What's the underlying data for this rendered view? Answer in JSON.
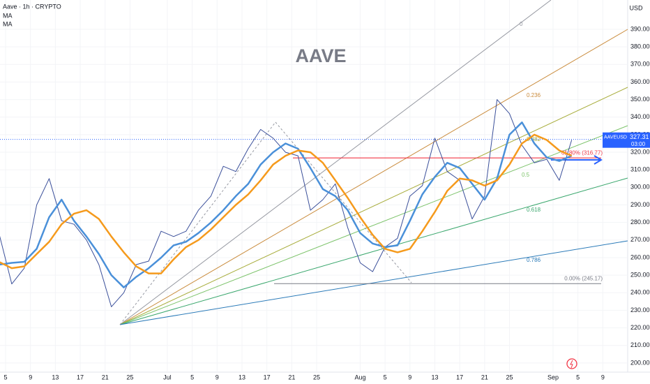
{
  "chart_data": {
    "type": "line",
    "title": "AAVE",
    "ylabel": "USD",
    "x": [
      155,
      157,
      159,
      161,
      163,
      165,
      167,
      169,
      171,
      173,
      175,
      177,
      179,
      181,
      183,
      185,
      187,
      189,
      191,
      193,
      195,
      197,
      199,
      201,
      203,
      205,
      207,
      209,
      211,
      213,
      215,
      217,
      219,
      221,
      223,
      225,
      227,
      229,
      231,
      233,
      235,
      237,
      239,
      241,
      243,
      245,
      247
    ],
    "series": [
      {
        "name": "Aave · 1h · CRYPTO",
        "color": "#3a4f9a",
        "values": [
          273,
          245,
          254,
          290,
          305,
          281,
          279,
          270,
          256,
          232,
          240,
          256,
          258,
          275,
          272,
          275,
          287,
          295,
          312,
          309,
          322,
          333,
          328,
          320,
          318,
          287,
          293,
          302,
          277,
          257,
          252,
          266,
          271,
          295,
          301,
          328,
          309,
          304,
          282,
          295,
          350,
          342,
          324,
          314,
          316,
          304,
          327
        ]
      },
      {
        "name": "MA",
        "color": "#4a90d9",
        "values": [
          256,
          257,
          257.6,
          265,
          283,
          293,
          281,
          272,
          262,
          250,
          243,
          249,
          254,
          260,
          267,
          269,
          274,
          280,
          287,
          295,
          302,
          313,
          320,
          325,
          322,
          311,
          299,
          295,
          287,
          274,
          268,
          266,
          267,
          281,
          296,
          306,
          314,
          311,
          302,
          293,
          305,
          330,
          337,
          325,
          317,
          315,
          318
        ]
      },
      {
        "name": "MA",
        "color": "#f59a1c",
        "values": [
          257.5,
          254,
          255,
          262,
          269,
          279,
          285,
          287,
          282,
          272,
          263,
          255,
          251,
          251,
          259,
          266,
          270,
          276,
          283,
          290,
          296,
          304,
          313,
          318,
          321,
          320,
          314,
          304,
          294,
          283,
          273,
          265,
          263,
          265,
          275,
          286,
          298,
          305,
          304,
          301,
          304,
          313,
          325,
          330,
          327,
          321,
          318
        ]
      }
    ],
    "xlim": [
      155.1,
      256
    ],
    "xticks": [
      {
        "value": 156,
        "label": "5"
      },
      {
        "value": 160,
        "label": "9"
      },
      {
        "value": 164,
        "label": "13"
      },
      {
        "value": 168,
        "label": "17"
      },
      {
        "value": 172,
        "label": "21"
      },
      {
        "value": 176,
        "label": "25"
      },
      {
        "value": 182,
        "label": "Jul"
      },
      {
        "value": 186,
        "label": "5"
      },
      {
        "value": 190,
        "label": "9"
      },
      {
        "value": 194,
        "label": "13"
      },
      {
        "value": 198,
        "label": "17"
      },
      {
        "value": 202,
        "label": "21"
      },
      {
        "value": 206,
        "label": "25"
      },
      {
        "value": 213,
        "label": "Aug"
      },
      {
        "value": 217,
        "label": "5"
      },
      {
        "value": 221,
        "label": "9"
      },
      {
        "value": 225,
        "label": "13"
      },
      {
        "value": 229,
        "label": "17"
      },
      {
        "value": 233,
        "label": "21"
      },
      {
        "value": 237,
        "label": "25"
      },
      {
        "value": 244,
        "label": "Sep"
      },
      {
        "value": 248,
        "label": "5"
      },
      {
        "value": 252,
        "label": "9"
      }
    ],
    "ylim": [
      192,
      406.7
    ],
    "yticks": [
      {
        "value": 200,
        "label": "200.00"
      },
      {
        "value": 210,
        "label": "210.00"
      },
      {
        "value": 220,
        "label": "220.00"
      },
      {
        "value": 230,
        "label": "230.00"
      },
      {
        "value": 240,
        "label": "240.00"
      },
      {
        "value": 250,
        "label": "250.00"
      },
      {
        "value": 260,
        "label": "260.00"
      },
      {
        "value": 270,
        "label": "270.00"
      },
      {
        "value": 280,
        "label": "280.00"
      },
      {
        "value": 290,
        "label": "290.00"
      },
      {
        "value": 300,
        "label": "300.00"
      },
      {
        "value": 310,
        "label": "310.00"
      },
      {
        "value": 320,
        "label": "320.00"
      },
      {
        "value": 330,
        "label": "330.00"
      },
      {
        "value": 340,
        "label": "340.00"
      },
      {
        "value": 350,
        "label": "350.00"
      },
      {
        "value": 360,
        "label": "360.00"
      },
      {
        "value": 370,
        "label": "370.00"
      },
      {
        "value": 380,
        "label": "380.00"
      },
      {
        "value": 390,
        "label": "390.00"
      }
    ],
    "grid": true,
    "fan_levels": [
      0,
      0.236,
      0.382,
      0.5,
      0.618,
      0.786
    ],
    "fan_colors": [
      "#9598a1",
      "#c98a3a",
      "#a8ad3c",
      "#7cc36a",
      "#3aa76d",
      "#2a7ab8"
    ],
    "levels": [
      {
        "value": 316.77,
        "label": "61.80% (316.77)",
        "color": "#f23645"
      },
      {
        "value": 245.17,
        "label": "0.00% (245.17)",
        "color": "#787b86"
      }
    ],
    "price_tag": {
      "symbol": "AAVEUSD",
      "value": 327.31,
      "countdown": "03:00",
      "color": "#2962ff"
    }
  }
}
